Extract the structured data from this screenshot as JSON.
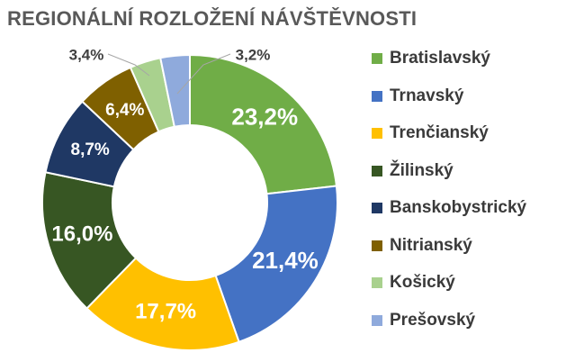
{
  "chart_data": {
    "type": "pie",
    "title": "REGIONÁLNÍ ROZLOŽENÍ NÁVŠTĚVNOSTI",
    "categories": [
      "Bratislavský",
      "Trnavský",
      "Trenčianský",
      "Žilinský",
      "Banskobystrický",
      "Nitrianský",
      "Košický",
      "Prešovský"
    ],
    "values": [
      23.2,
      21.4,
      17.7,
      16.0,
      8.7,
      6.4,
      3.4,
      3.2
    ],
    "data_labels": [
      "23,2%",
      "21,4%",
      "17,7%",
      "16,0%",
      "8,7%",
      "6,4%",
      "3,4%",
      "3,2%"
    ],
    "colors": [
      "#70AD47",
      "#4472C4",
      "#FFC000",
      "#375623",
      "#1F3864",
      "#7F6000",
      "#A9D18E",
      "#8FAADC"
    ],
    "donut": true,
    "legend_position": "right"
  }
}
